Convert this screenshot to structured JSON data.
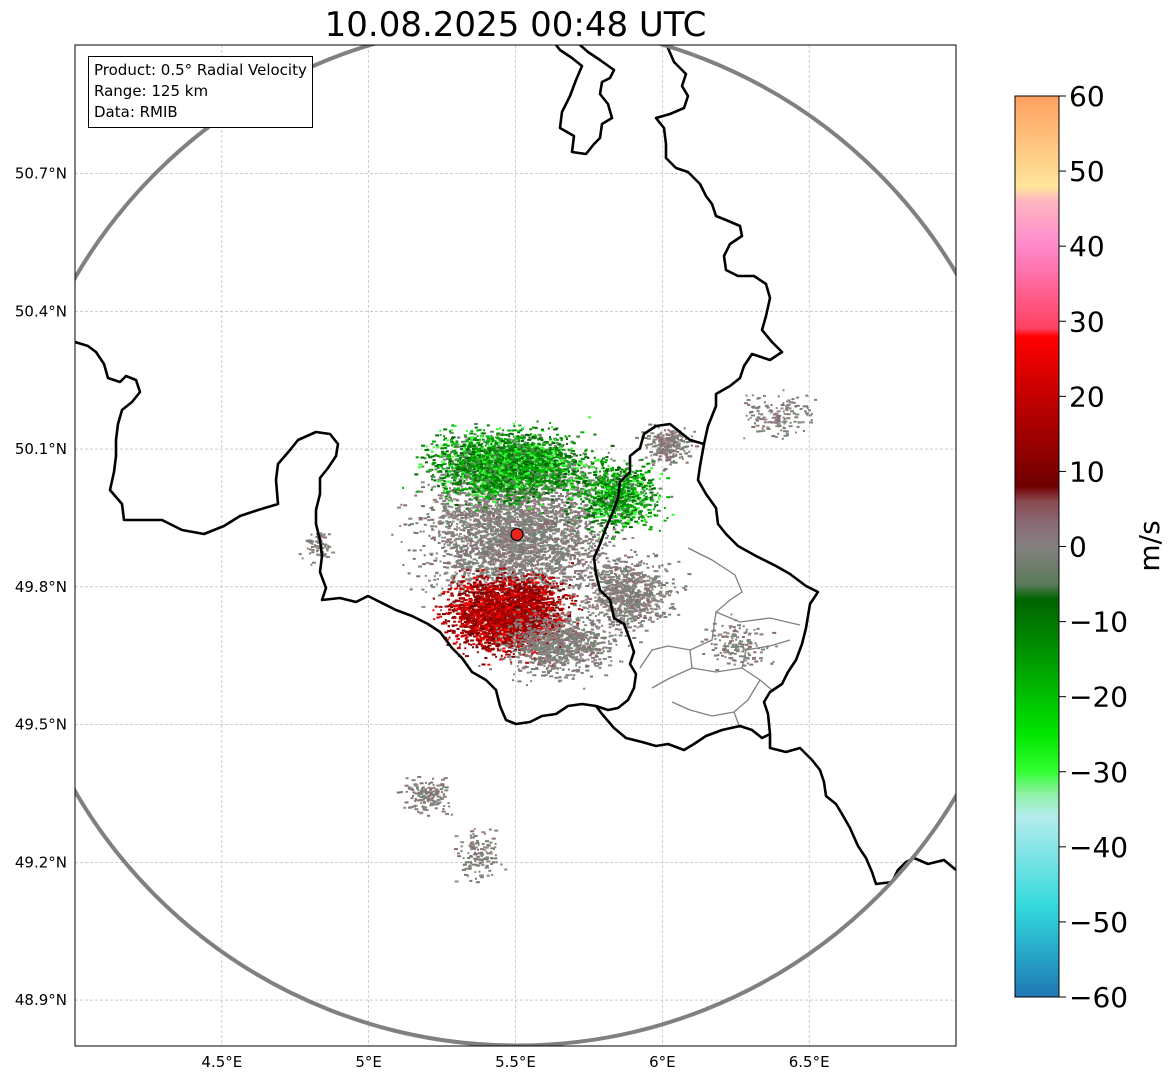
{
  "title": "10.08.2025 00:48 UTC",
  "info": {
    "product": "Product: 0.5° Radial Velocity",
    "range": "Range: 125 km",
    "data": "Data: RMIB"
  },
  "map": {
    "lon_range": [
      4.0,
      7.0
    ],
    "lat_range": [
      48.8,
      50.98
    ],
    "lon_ticks": [
      {
        "value": 4.5,
        "label": "4.5°E"
      },
      {
        "value": 5.0,
        "label": "5°E"
      },
      {
        "value": 5.5,
        "label": "5.5°E"
      },
      {
        "value": 6.0,
        "label": "6°E"
      },
      {
        "value": 6.5,
        "label": "6.5°E"
      }
    ],
    "lat_ticks": [
      {
        "value": 48.9,
        "label": "48.9°N"
      },
      {
        "value": 49.2,
        "label": "49.2°N"
      },
      {
        "value": 49.5,
        "label": "49.5°N"
      },
      {
        "value": 49.8,
        "label": "49.8°N"
      },
      {
        "value": 50.1,
        "label": "50.1°N"
      },
      {
        "value": 50.4,
        "label": "50.4°N"
      },
      {
        "value": 50.7,
        "label": "50.7°N"
      }
    ],
    "radar_site": {
      "lon": 5.505,
      "lat": 49.914
    },
    "range_ring_color": "#808080",
    "grid": true
  },
  "colorbar": {
    "label": "m/s",
    "min": -60,
    "max": 60,
    "ticks": [
      {
        "value": 60,
        "label": "60"
      },
      {
        "value": 50,
        "label": "50"
      },
      {
        "value": 40,
        "label": "40"
      },
      {
        "value": 30,
        "label": "30"
      },
      {
        "value": 20,
        "label": "20"
      },
      {
        "value": 10,
        "label": "10"
      },
      {
        "value": 0,
        "label": "0"
      },
      {
        "value": -10,
        "label": "−10"
      },
      {
        "value": -20,
        "label": "−20"
      },
      {
        "value": -30,
        "label": "−30"
      },
      {
        "value": -40,
        "label": "−40"
      },
      {
        "value": -50,
        "label": "−50"
      },
      {
        "value": -60,
        "label": "−60"
      }
    ],
    "stops": [
      {
        "value": -60,
        "color": "#1f77b4"
      },
      {
        "value": -52,
        "color": "#2ab9d0"
      },
      {
        "value": -48,
        "color": "#33d9dc"
      },
      {
        "value": -36,
        "color": "#b3ecec"
      },
      {
        "value": -33,
        "color": "#90f0a8"
      },
      {
        "value": -30,
        "color": "#33ff33"
      },
      {
        "value": -25,
        "color": "#00e600"
      },
      {
        "value": -15,
        "color": "#009900"
      },
      {
        "value": -7,
        "color": "#006400"
      },
      {
        "value": -5,
        "color": "#5a7a5a"
      },
      {
        "value": 0,
        "color": "#858080"
      },
      {
        "value": 3,
        "color": "#8a6a78"
      },
      {
        "value": 6,
        "color": "#8b4a50"
      },
      {
        "value": 8,
        "color": "#700000"
      },
      {
        "value": 20,
        "color": "#c40000"
      },
      {
        "value": 28,
        "color": "#ff0000"
      },
      {
        "value": 29,
        "color": "#ff4060"
      },
      {
        "value": 40,
        "color": "#ff88cc"
      },
      {
        "value": 46,
        "color": "#ffb6c1"
      },
      {
        "value": 48,
        "color": "#ffe59a"
      },
      {
        "value": 60,
        "color": "#ffa060"
      }
    ]
  }
}
